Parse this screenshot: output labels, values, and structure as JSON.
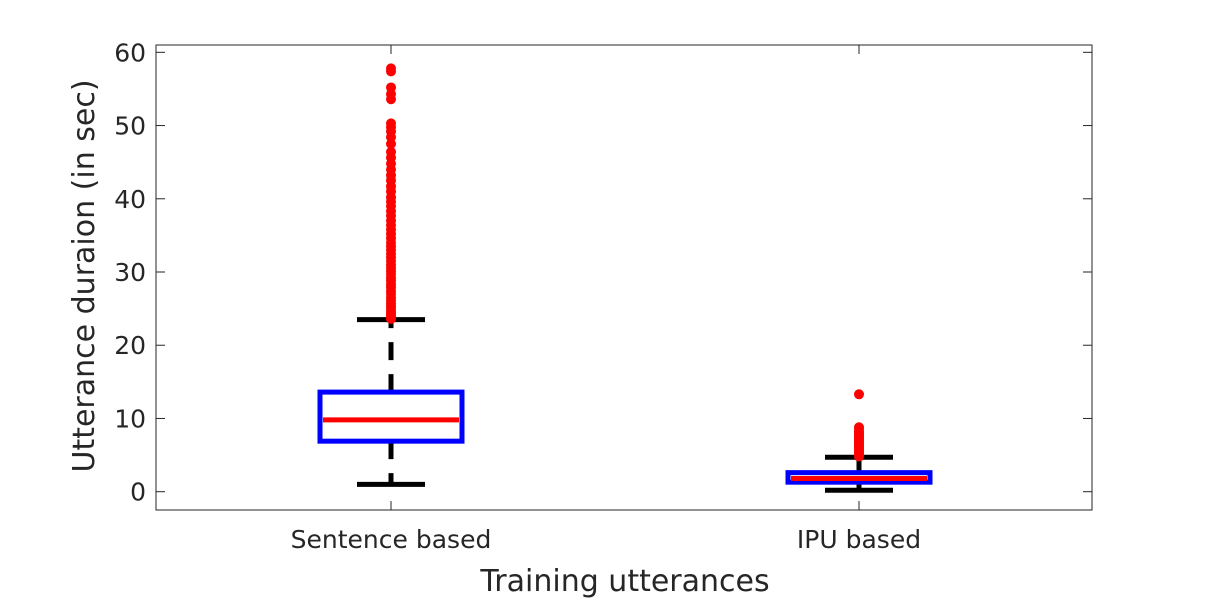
{
  "chart_data": {
    "type": "box",
    "title": "",
    "xlabel": "Training utterances",
    "ylabel": "Utterance duraion (in sec)",
    "ylim": [
      -2.5,
      61
    ],
    "yticks": [
      0,
      10,
      20,
      30,
      40,
      50,
      60
    ],
    "grid": false,
    "categories": [
      "Sentence based",
      "IPU based"
    ],
    "boxes": [
      {
        "category": "Sentence based",
        "whisker_low": 1.0,
        "q1": 6.9,
        "median": 9.8,
        "q3": 13.6,
        "whisker_high": 23.5,
        "outliers": [
          23.6,
          23.8,
          24.0,
          24.3,
          24.6,
          25.0,
          25.3,
          25.7,
          26.1,
          26.5,
          27.0,
          27.4,
          27.9,
          28.3,
          28.8,
          29.2,
          29.7,
          30.1,
          30.6,
          31.0,
          31.5,
          32.0,
          32.5,
          33.0,
          33.5,
          34.0,
          34.6,
          35.2,
          35.8,
          36.4,
          37.0,
          37.7,
          38.3,
          39.0,
          39.6,
          40.2,
          41.0,
          41.7,
          42.5,
          43.2,
          44.0,
          44.8,
          45.6,
          46.4,
          47.5,
          48.4,
          49.2,
          49.8,
          50.3,
          53.6,
          54.3,
          55.2,
          57.4,
          57.8
        ]
      },
      {
        "category": "IPU based",
        "whisker_low": 0.2,
        "q1": 1.3,
        "median": 1.8,
        "q3": 2.6,
        "whisker_high": 4.7,
        "outliers": [
          4.8,
          5.0,
          5.2,
          5.4,
          5.6,
          5.8,
          6.0,
          6.2,
          6.4,
          6.6,
          6.8,
          7.0,
          7.2,
          7.4,
          7.6,
          7.8,
          8.0,
          8.2,
          8.5,
          8.8,
          13.3
        ]
      }
    ],
    "colors": {
      "box": "#0000ff",
      "median": "#ff0000",
      "whisker": "#000000",
      "outlier": "#ff0000",
      "axis": "#262626"
    }
  }
}
